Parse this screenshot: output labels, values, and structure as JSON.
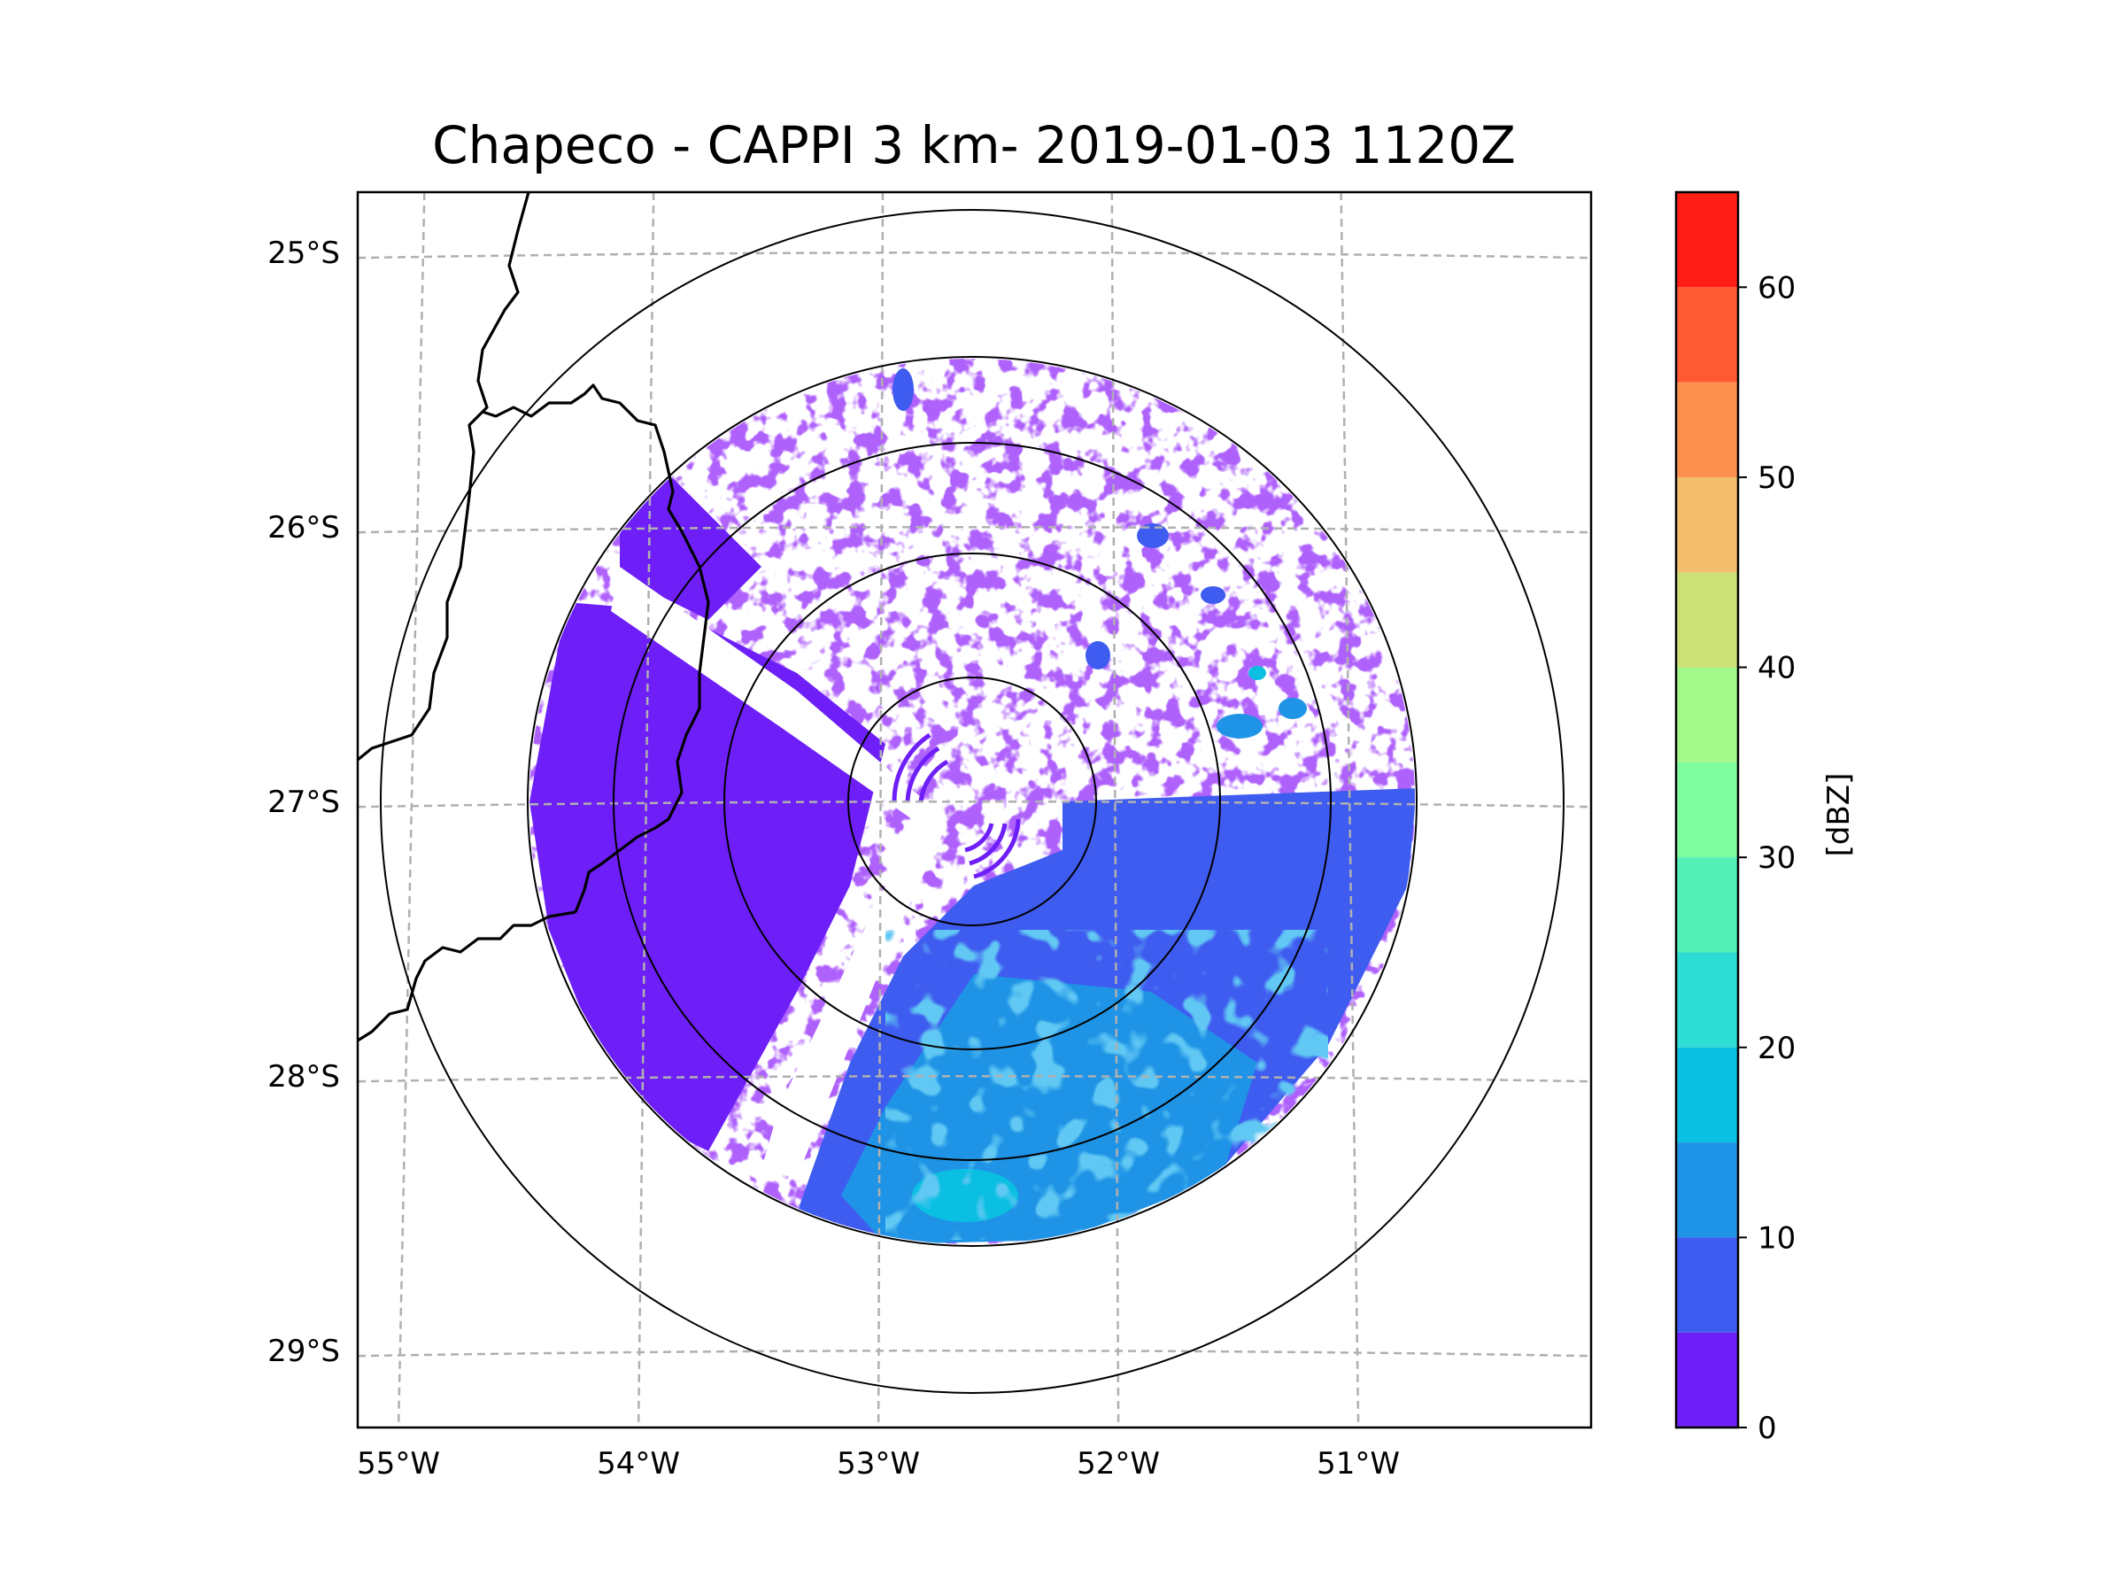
{
  "chart_data": {
    "type": "heatmap",
    "title": "Chapeco - CAPPI 3 km- 2019-01-03 1120Z",
    "projection": "map",
    "xlabel": "",
    "ylabel": "",
    "x_ticks": [
      "55°W",
      "54°W",
      "53°W",
      "52°W",
      "51°W"
    ],
    "x_tick_values": [
      -55,
      -54,
      -53,
      -52,
      -51
    ],
    "y_ticks": [
      "25°S",
      "26°S",
      "27°S",
      "28°S",
      "29°S"
    ],
    "y_tick_values": [
      -25,
      -26,
      -27,
      -28,
      -29
    ],
    "xlim": [
      -55.17,
      -50.03
    ],
    "ylim": [
      -29.28,
      -24.78
    ],
    "grid": "dashed",
    "radar_center": {
      "lon": -52.6,
      "lat": -27.02
    },
    "range_rings_km": [
      50,
      100,
      150,
      250
    ],
    "data_coverage_ring_km": 200,
    "colorbar": {
      "label": "[dBZ]",
      "ticks": [
        "0",
        "10",
        "20",
        "30",
        "40",
        "50",
        "60"
      ],
      "tick_values": [
        0,
        10,
        20,
        30,
        40,
        50,
        60
      ],
      "range": [
        0,
        65
      ],
      "levels": [
        0,
        5,
        10,
        15,
        20,
        25,
        30,
        35,
        40,
        45,
        50,
        55,
        60,
        65
      ],
      "colors": [
        "#6e1ff8",
        "#3f5cf0",
        "#1f94e6",
        "#0bbfe2",
        "#2ddcd2",
        "#53f0b7",
        "#7efca0",
        "#a3f88a",
        "#cde078",
        "#f2be6d",
        "#ff9150",
        "#ff5a34",
        "#ff1e16"
      ]
    },
    "echo_regions": [
      {
        "region": "south and southeast sector",
        "dbz_range": [
          5,
          15
        ]
      },
      {
        "region": "west and southwest sector",
        "dbz_range": [
          0,
          5
        ]
      },
      {
        "region": "northeast sector (scattered cells)",
        "dbz_range": [
          0,
          20
        ]
      }
    ]
  }
}
